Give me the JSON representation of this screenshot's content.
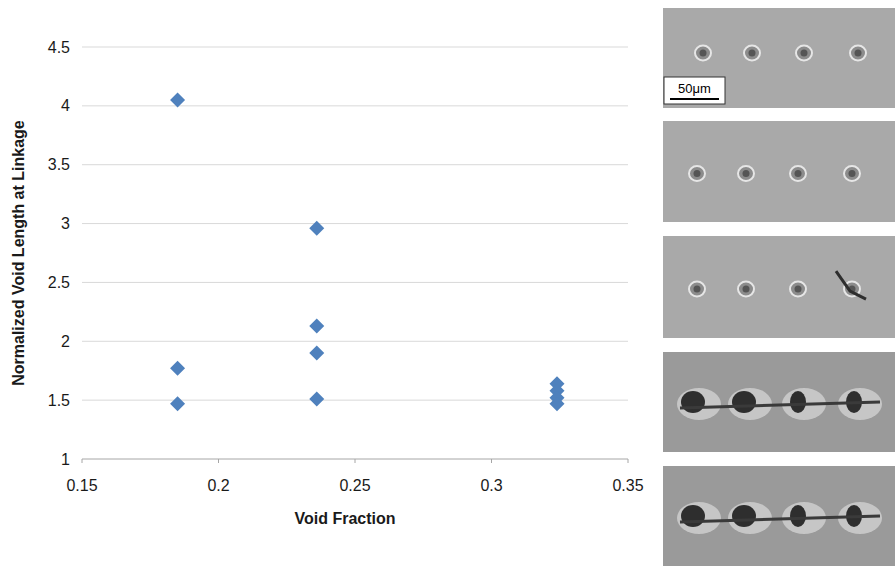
{
  "chart_data": {
    "type": "scatter",
    "x_label": "Void Fraction",
    "y_label": "Normalized Void Length at Linkage",
    "x": [
      0.185,
      0.185,
      0.185,
      0.236,
      0.236,
      0.236,
      0.236,
      0.324,
      0.324,
      0.324,
      0.324
    ],
    "values": [
      4.05,
      1.77,
      1.47,
      2.96,
      2.13,
      1.9,
      1.51,
      1.64,
      1.58,
      1.52,
      1.47
    ],
    "color": "#4f81bd",
    "marker": "diamond",
    "xlim": [
      0.15,
      0.35
    ],
    "xticks": [
      0.15,
      0.2,
      0.25,
      0.3,
      0.35
    ],
    "ylim": [
      1,
      4.5
    ],
    "yticks": [
      1,
      1.5,
      2,
      2.5,
      3,
      3.5,
      4,
      4.5
    ],
    "grid": true,
    "annotations": [
      "50μm"
    ]
  }
}
